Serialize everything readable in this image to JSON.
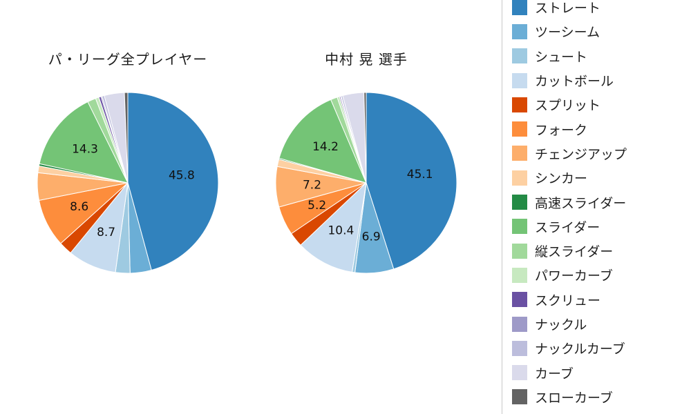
{
  "page": {
    "background": "#ffffff"
  },
  "legend": {
    "position": "right",
    "items": [
      {
        "label": "ストレート",
        "color": "#3182bd"
      },
      {
        "label": "ツーシーム",
        "color": "#6baed6"
      },
      {
        "label": "シュート",
        "color": "#9ecae1"
      },
      {
        "label": "カットボール",
        "color": "#c6dbef"
      },
      {
        "label": "スプリット",
        "color": "#d94801"
      },
      {
        "label": "フォーク",
        "color": "#fd8d3c"
      },
      {
        "label": "チェンジアップ",
        "color": "#fdae6b"
      },
      {
        "label": "シンカー",
        "color": "#fdd0a2"
      },
      {
        "label": "高速スライダー",
        "color": "#238b45"
      },
      {
        "label": "スライダー",
        "color": "#74c476"
      },
      {
        "label": "縦スライダー",
        "color": "#a1d99b"
      },
      {
        "label": "パワーカーブ",
        "color": "#c7e9c0"
      },
      {
        "label": "スクリュー",
        "color": "#6a51a3"
      },
      {
        "label": "ナックル",
        "color": "#9e9ac8"
      },
      {
        "label": "ナックルカーブ",
        "color": "#bcbddc"
      },
      {
        "label": "カーブ",
        "color": "#dadaeb"
      },
      {
        "label": "スローカーブ",
        "color": "#636363"
      }
    ]
  },
  "chart_data": [
    {
      "type": "pie",
      "title": "パ・リーグ全プレイヤー",
      "start_angle": "top",
      "direction": "clockwise",
      "labeled_values_shown": [
        "45.8",
        "8.7",
        "8.6",
        "14.3"
      ],
      "slices": [
        {
          "name": "ストレート",
          "value": 45.8,
          "label": "45.8"
        },
        {
          "name": "ツーシーム",
          "value": 3.8,
          "label": ""
        },
        {
          "name": "シュート",
          "value": 2.6,
          "label": ""
        },
        {
          "name": "カットボール",
          "value": 8.7,
          "label": "8.7"
        },
        {
          "name": "スプリット",
          "value": 2.4,
          "label": ""
        },
        {
          "name": "フォーク",
          "value": 8.6,
          "label": "8.6"
        },
        {
          "name": "チェンジアップ",
          "value": 4.9,
          "label": ""
        },
        {
          "name": "シンカー",
          "value": 1.2,
          "label": ""
        },
        {
          "name": "高速スライダー",
          "value": 0.4,
          "label": ""
        },
        {
          "name": "スライダー",
          "value": 14.3,
          "label": "14.3"
        },
        {
          "name": "縦スライダー",
          "value": 1.5,
          "label": ""
        },
        {
          "name": "パワーカーブ",
          "value": 0.6,
          "label": ""
        },
        {
          "name": "スクリュー",
          "value": 0.4,
          "label": ""
        },
        {
          "name": "ナックル",
          "value": 0.2,
          "label": ""
        },
        {
          "name": "ナックルカーブ",
          "value": 0.4,
          "label": ""
        },
        {
          "name": "カーブ",
          "value": 3.6,
          "label": ""
        },
        {
          "name": "スローカーブ",
          "value": 0.6,
          "label": ""
        }
      ]
    },
    {
      "type": "pie",
      "title": "中村 晃  選手",
      "start_angle": "top",
      "direction": "clockwise",
      "labeled_values_shown": [
        "45.1",
        "6.9",
        "10.4",
        "5.2",
        "7.2",
        "14.2"
      ],
      "slices": [
        {
          "name": "ストレート",
          "value": 45.1,
          "label": "45.1"
        },
        {
          "name": "ツーシーム",
          "value": 6.9,
          "label": "6.9"
        },
        {
          "name": "シュート",
          "value": 0.5,
          "label": ""
        },
        {
          "name": "カットボール",
          "value": 10.4,
          "label": "10.4"
        },
        {
          "name": "スプリット",
          "value": 2.6,
          "label": ""
        },
        {
          "name": "フォーク",
          "value": 5.2,
          "label": "5.2"
        },
        {
          "name": "チェンジアップ",
          "value": 7.2,
          "label": "7.2"
        },
        {
          "name": "シンカー",
          "value": 1.3,
          "label": ""
        },
        {
          "name": "高速スライダー",
          "value": 0.2,
          "label": ""
        },
        {
          "name": "スライダー",
          "value": 14.2,
          "label": "14.2"
        },
        {
          "name": "縦スライダー",
          "value": 1.2,
          "label": ""
        },
        {
          "name": "パワーカーブ",
          "value": 0.4,
          "label": ""
        },
        {
          "name": "スクリュー",
          "value": 0.2,
          "label": ""
        },
        {
          "name": "ナックル",
          "value": 0.1,
          "label": ""
        },
        {
          "name": "ナックルカーブ",
          "value": 0.3,
          "label": ""
        },
        {
          "name": "カーブ",
          "value": 3.8,
          "label": ""
        },
        {
          "name": "スローカーブ",
          "value": 0.4,
          "label": ""
        }
      ]
    }
  ]
}
